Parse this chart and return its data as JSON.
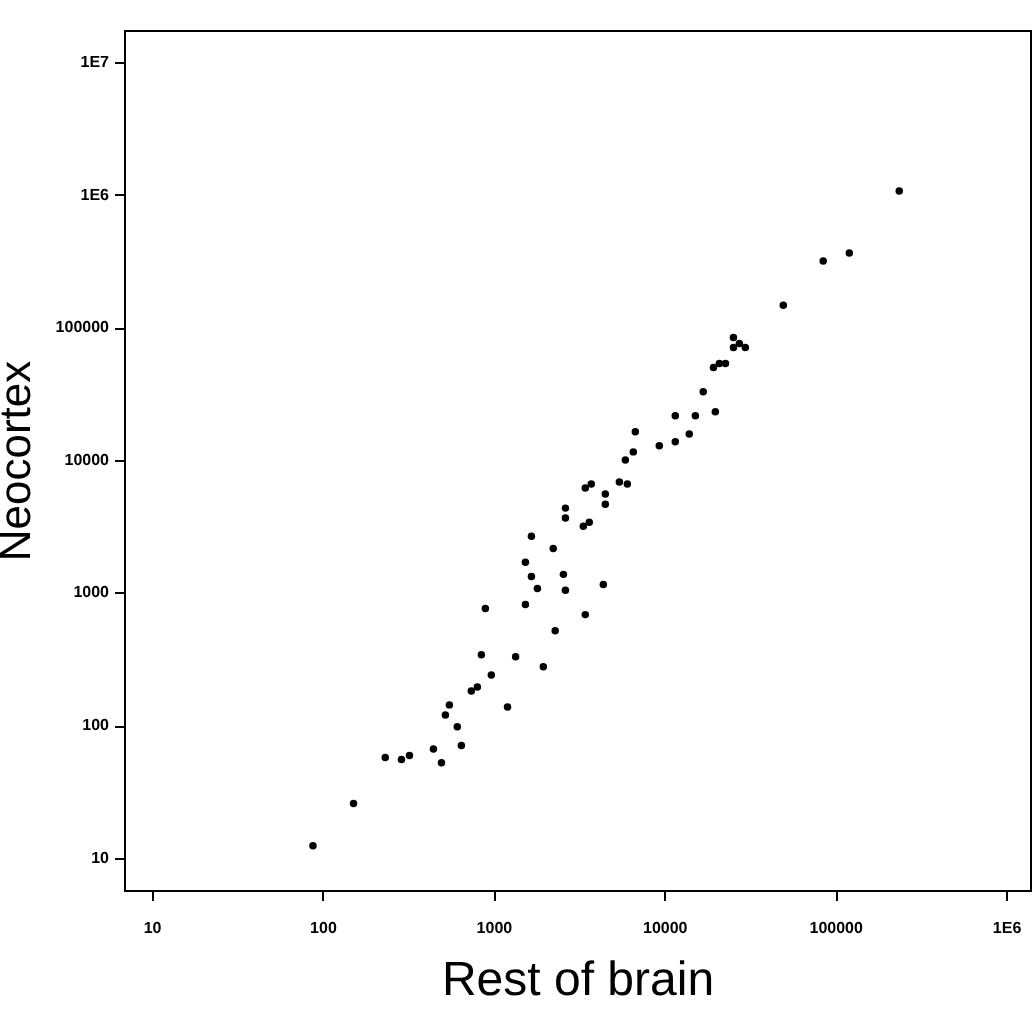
{
  "chart_data": {
    "type": "scatter",
    "xlabel": "Rest of brain",
    "ylabel": "Neocortex",
    "log": "xy",
    "grid": false,
    "marker": "circle",
    "xlim": [
      6.9,
      1380000
    ],
    "ylim": [
      5.7,
      17500000
    ],
    "xticks": [
      10,
      100,
      1000,
      10000,
      100000,
      {
        "value": 1000000,
        "label": "1E6"
      }
    ],
    "yticks": [
      10,
      100,
      1000,
      10000,
      100000,
      {
        "value": 1000000,
        "label": "1E6"
      },
      {
        "value": 10000000,
        "label": "1E7"
      }
    ],
    "series": [
      {
        "color": "#000000",
        "x": [
          88,
          152,
          233,
          290,
          323,
          446,
          497,
          524,
          553,
          615,
          650,
          743,
          806,
          851,
          973,
          898,
          1210,
          1350,
          1540,
          1540,
          1670,
          1810,
          1670,
          1960,
          2240,
          2300,
          2570,
          2640,
          3450,
          4400,
          2640,
          2640,
          3450,
          3740,
          3360,
          3640,
          4520,
          4520,
          5460,
          6080,
          5920,
          6590,
          6770,
          9350,
          11600,
          14000,
          11600,
          15200,
          19900,
          16900,
          19400,
          21000,
          22800,
          25400,
          27500,
          29800,
          25400,
          49700,
          85100,
          121000,
          237000
        ],
        "values": [
          12.3,
          25.6,
          57,
          55,
          59,
          66,
          52,
          119,
          142,
          97,
          70,
          181,
          194,
          339,
          239,
          757,
          137,
          327,
          811,
          1690,
          1320,
          1070,
          2660,
          275,
          2150,
          515,
          1370,
          1040,
          681,
          1150,
          4330,
          3640,
          6140,
          6580,
          3160,
          3390,
          4640,
          5530,
          6810,
          6580,
          10000,
          11500,
          16300,
          12800,
          13700,
          15700,
          21500,
          21500,
          23100,
          32700,
          49800,
          53400,
          53400,
          70500,
          75700,
          70500,
          84000,
          147000,
          316000,
          364000,
          1070000
        ]
      }
    ]
  }
}
